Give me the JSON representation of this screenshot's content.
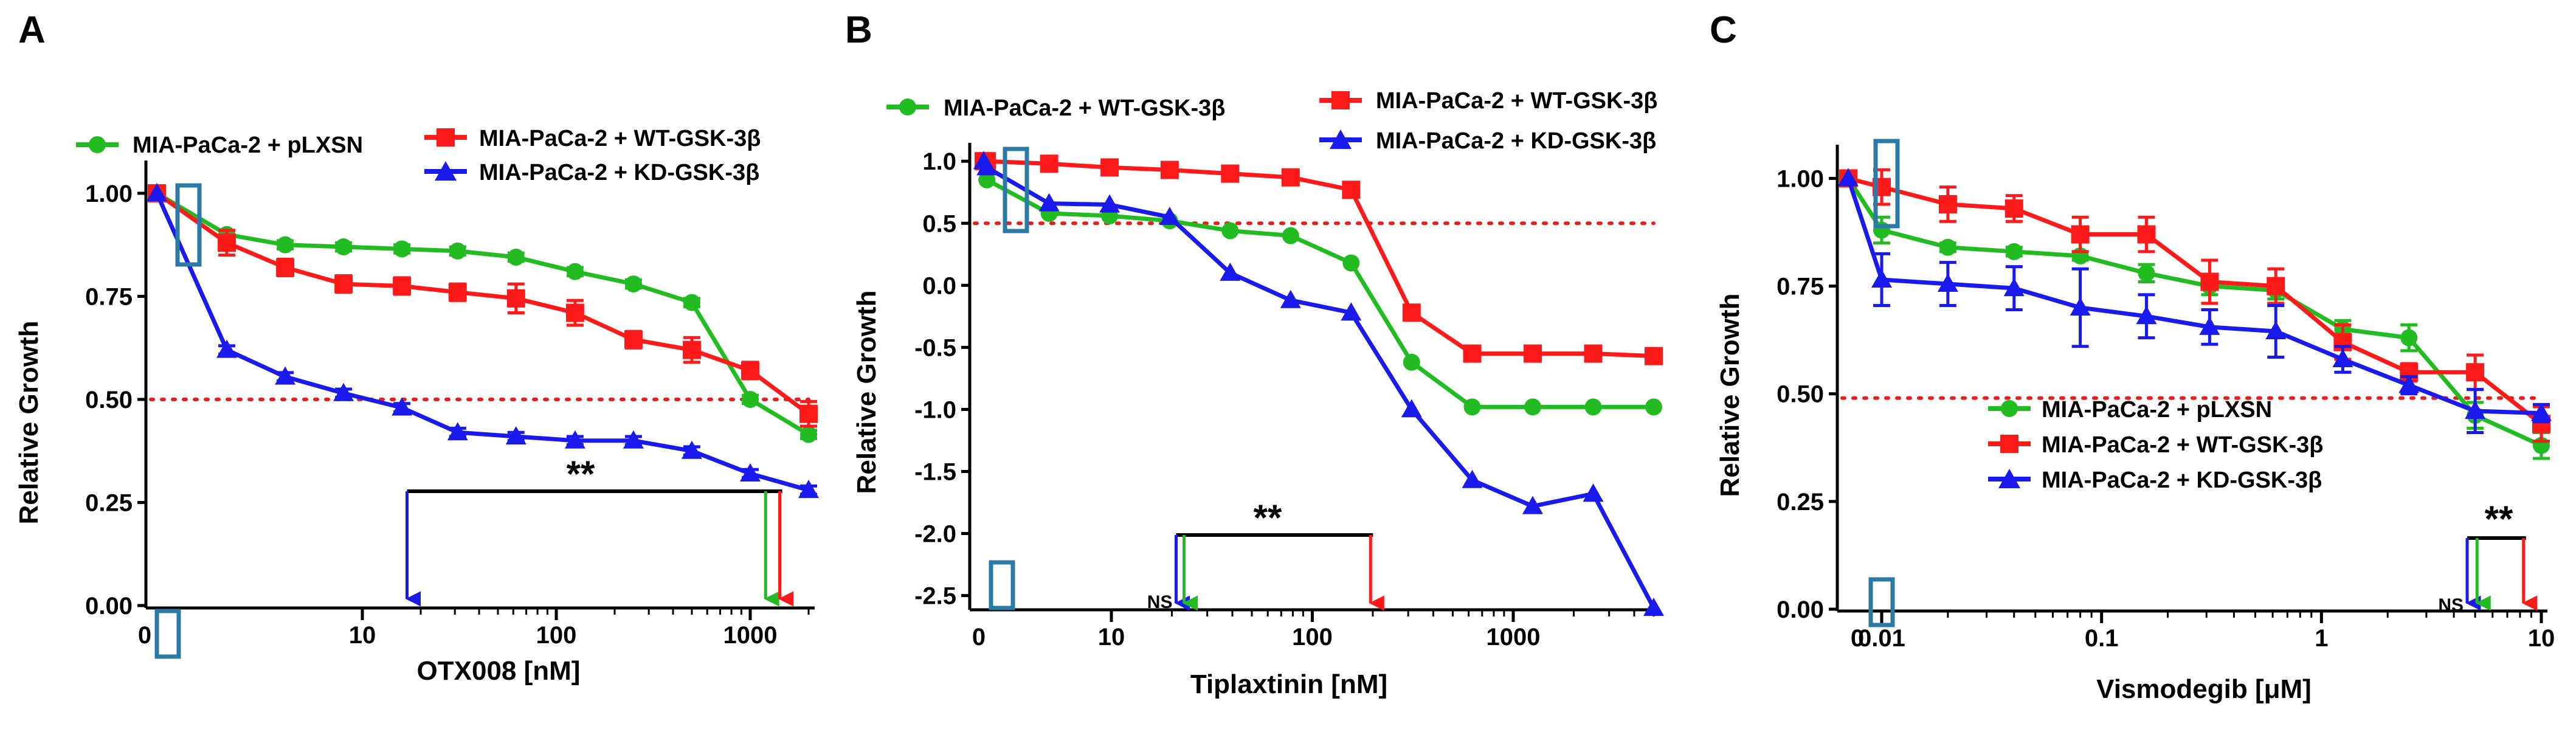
{
  "chart_data": [
    {
      "type": "line",
      "panel_label": "A",
      "xlabel": "OTX008  [nM]",
      "ylabel": "Relative Growth",
      "xscale": "log-with-zero",
      "x_ticks": [
        "0",
        "10",
        "100",
        "1000"
      ],
      "y_ticks": [
        "0.00",
        "0.25",
        "0.50",
        "0.75",
        "1.00"
      ],
      "xlim": [
        0,
        2000
      ],
      "ylim": [
        0,
        1.05
      ],
      "reference_line": 0.5,
      "x": [
        0,
        2,
        4,
        8,
        16,
        31,
        62,
        125,
        250,
        500,
        1000,
        2000
      ],
      "series": [
        {
          "name": "MIA-PaCa-2 + pLXSN",
          "color": "#22bb22",
          "marker": "circle",
          "values": [
            1.0,
            0.9,
            0.875,
            0.87,
            0.865,
            0.86,
            0.845,
            0.81,
            0.78,
            0.735,
            0.5,
            0.415
          ],
          "errors": [
            0,
            0.01,
            0.01,
            0.01,
            0.01,
            0.01,
            0.01,
            0.01,
            0.01,
            0.01,
            0.01,
            0.01
          ]
        },
        {
          "name": "MIA-PaCa-2 + WT-GSK-3β",
          "color": "#ff1a1a",
          "marker": "square",
          "values": [
            1.0,
            0.88,
            0.82,
            0.78,
            0.775,
            0.76,
            0.745,
            0.71,
            0.645,
            0.62,
            0.57,
            0.465
          ],
          "errors": [
            0,
            0.03,
            0.02,
            0.02,
            0.02,
            0.02,
            0.035,
            0.03,
            0.02,
            0.03,
            0.02,
            0.03
          ]
        },
        {
          "name": "MIA-PaCa-2 + KD-GSK-3β",
          "color": "#1a1aee",
          "marker": "triangle",
          "values": [
            1.0,
            0.62,
            0.555,
            0.515,
            0.48,
            0.42,
            0.41,
            0.4,
            0.4,
            0.375,
            0.32,
            0.28
          ],
          "errors": [
            0,
            0.01,
            0.01,
            0.01,
            0.01,
            0.01,
            0.01,
            0.01,
            0.01,
            0.01,
            0.01,
            0.01
          ]
        }
      ],
      "legend": [
        "MIA-PaCa-2 + pLXSN",
        "MIA-PaCa-2 + WT-GSK-3β",
        "MIA-PaCa-2 + KD-GSK-3β"
      ],
      "legend_placement": "top",
      "significance": {
        "label": "**",
        "ns_label": "",
        "arrows": [
          {
            "series": "MIA-PaCa-2 + KD-GSK-3β",
            "x": 17
          },
          {
            "series": "MIA-PaCa-2 + pLXSN",
            "x": 1200
          },
          {
            "series": "MIA-PaCa-2 + WT-GSK-3β",
            "x": 1420
          }
        ]
      }
    },
    {
      "type": "line",
      "panel_label": "B",
      "xlabel": "Tiplaxtinin [nM]",
      "ylabel": "Relative Growth",
      "xscale": "log-with-zero",
      "x_ticks": [
        "0",
        "10",
        "100",
        "1000"
      ],
      "y_ticks": [
        "1.0",
        "0.5",
        "0.0",
        "-0.5",
        "-1.0",
        "-1.5",
        "-2.0",
        "-2.5"
      ],
      "xlim": [
        0,
        5000
      ],
      "ylim": [
        -2.6,
        1.05
      ],
      "reference_line": 0.5,
      "x": [
        0,
        2.4,
        4.9,
        9.8,
        19.5,
        39,
        78,
        156,
        312,
        625,
        1250,
        2500,
        5000
      ],
      "series": [
        {
          "name": "MIA-PaCa-2 + WT-GSK-3β",
          "color": "#22bb22",
          "marker": "circle",
          "values": [
            1.0,
            0.85,
            0.58,
            0.56,
            0.52,
            0.44,
            0.4,
            0.18,
            -0.62,
            -0.98,
            -0.98,
            -0.98,
            -0.98
          ]
        },
        {
          "name": "MIA-PaCa-2 + WT-GSK-3β",
          "color": "#ff1a1a",
          "marker": "square",
          "values": [
            1.0,
            1.0,
            0.98,
            0.95,
            0.93,
            0.9,
            0.87,
            0.77,
            -0.22,
            -0.55,
            -0.55,
            -0.55,
            -0.57
          ]
        },
        {
          "name": "MIA-PaCa-2 + KD-GSK-3β",
          "color": "#1a1aee",
          "marker": "triangle",
          "values": [
            1.0,
            0.95,
            0.66,
            0.65,
            0.55,
            0.1,
            -0.12,
            -0.22,
            -1.0,
            -1.57,
            -1.78,
            -1.68,
            -2.6
          ]
        }
      ],
      "legend": [
        "MIA-PaCa-2 + WT-GSK-3β",
        "MIA-PaCa-2 + WT-GSK-3β",
        "MIA-PaCa-2 + KD-GSK-3β"
      ],
      "legend_placement": "top",
      "significance": {
        "label": "**",
        "ns_label": "NS",
        "arrows": [
          {
            "series": "MIA-PaCa-2 + KD-GSK-3β",
            "x": 21
          },
          {
            "series": "MIA-PaCa-2 + WT-GSK-3β (green)",
            "x": 23
          },
          {
            "series": "MIA-PaCa-2 + WT-GSK-3β",
            "x": 195
          }
        ]
      }
    },
    {
      "type": "line",
      "panel_label": "C",
      "xlabel": "Vismodegib [μM]",
      "ylabel": "Relative Growth",
      "xscale": "log-with-zero",
      "x_ticks": [
        "0",
        "0.01",
        "0.1",
        "1",
        "10"
      ],
      "y_ticks": [
        "0.00",
        "0.25",
        "0.50",
        "0.75",
        "1.00"
      ],
      "xlim": [
        0,
        10
      ],
      "ylim": [
        0,
        1.05
      ],
      "reference_line": 0.49,
      "x": [
        0,
        0.01,
        0.02,
        0.04,
        0.08,
        0.16,
        0.31,
        0.62,
        1.25,
        2.5,
        5,
        10
      ],
      "series": [
        {
          "name": "MIA-PaCa-2 + pLXSN",
          "color": "#22bb22",
          "marker": "circle",
          "values": [
            1.0,
            0.88,
            0.84,
            0.83,
            0.82,
            0.78,
            0.75,
            0.74,
            0.65,
            0.63,
            0.45,
            0.38
          ],
          "errors": [
            0,
            0.03,
            0.01,
            0.01,
            0.01,
            0.02,
            0.02,
            0.02,
            0.02,
            0.03,
            0.03,
            0.03
          ]
        },
        {
          "name": "MIA-PaCa-2 + WT-GSK-3β",
          "color": "#ff1a1a",
          "marker": "square",
          "values": [
            1.0,
            0.98,
            0.94,
            0.93,
            0.87,
            0.87,
            0.76,
            0.75,
            0.62,
            0.55,
            0.55,
            0.43
          ],
          "errors": [
            0,
            0.04,
            0.04,
            0.03,
            0.04,
            0.04,
            0.05,
            0.04,
            0.04,
            0.02,
            0.04,
            0.04
          ]
        },
        {
          "name": "MIA-PaCa-2 + KD-GSK-3β",
          "color": "#1a1aee",
          "marker": "triangle",
          "values": [
            1.0,
            0.765,
            0.755,
            0.745,
            0.7,
            0.68,
            0.655,
            0.645,
            0.58,
            0.52,
            0.46,
            0.455
          ],
          "errors": [
            0,
            0.06,
            0.05,
            0.05,
            0.09,
            0.05,
            0.04,
            0.06,
            0.03,
            0.02,
            0.05,
            0.02
          ]
        }
      ],
      "legend": [
        "MIA-PaCa-2 + pLXSN",
        "MIA-PaCa-2 + WT-GSK-3β",
        "MIA-PaCa-2 + KD-GSK-3β"
      ],
      "legend_placement": "bottom-right",
      "significance": {
        "label": "**",
        "ns_label": "NS",
        "arrows": [
          {
            "series": "MIA-PaCa-2 + KD-GSK-3β",
            "x": 4.6
          },
          {
            "series": "MIA-PaCa-2 + pLXSN",
            "x": 5.1
          },
          {
            "series": "MIA-PaCa-2 + WT-GSK-3β",
            "x": 8.3
          }
        ]
      }
    }
  ],
  "colors": {
    "green": "#22bb22",
    "red": "#ff1a1a",
    "blue": "#1a1aee",
    "reference_line": "#e62020",
    "highlight_box": "#2b7aa6"
  }
}
